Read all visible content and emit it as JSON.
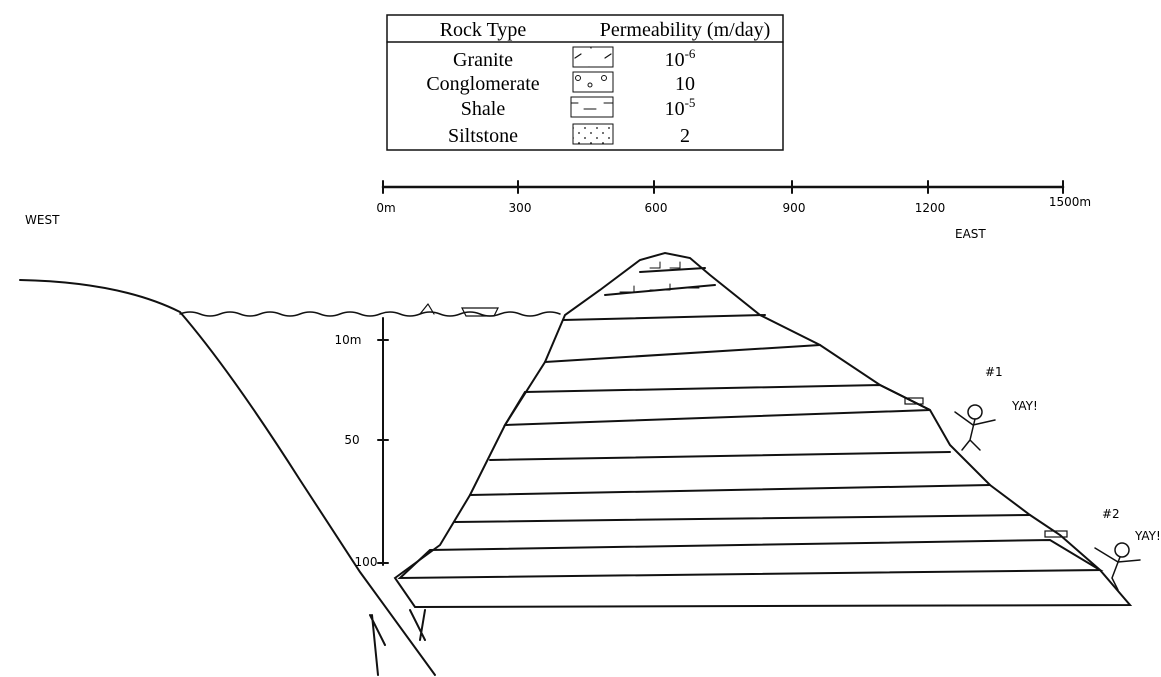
{
  "legend": {
    "header": {
      "rock": "Rock Type",
      "permeability": "Permeability (m/day)"
    },
    "rows": [
      {
        "rock": "Granite",
        "base": "10",
        "exponent": "-6"
      },
      {
        "rock": "Conglomerate",
        "base": "10"
      },
      {
        "rock": "Shale",
        "base": "10",
        "exponent": "-5"
      },
      {
        "rock": "Siltstone",
        "base": "2"
      }
    ]
  },
  "horizontal_scale": {
    "labels": [
      "0m",
      "300",
      "600",
      "900",
      "1200",
      "1500m"
    ]
  },
  "depth_scale": {
    "labels": [
      "10m",
      "50",
      "100"
    ]
  },
  "directions": {
    "west": "WEST",
    "east": "EAST"
  },
  "springs": [
    {
      "label": "#1",
      "exclamation": "YAY!"
    },
    {
      "label": "#2",
      "exclamation": "YAY!"
    }
  ]
}
